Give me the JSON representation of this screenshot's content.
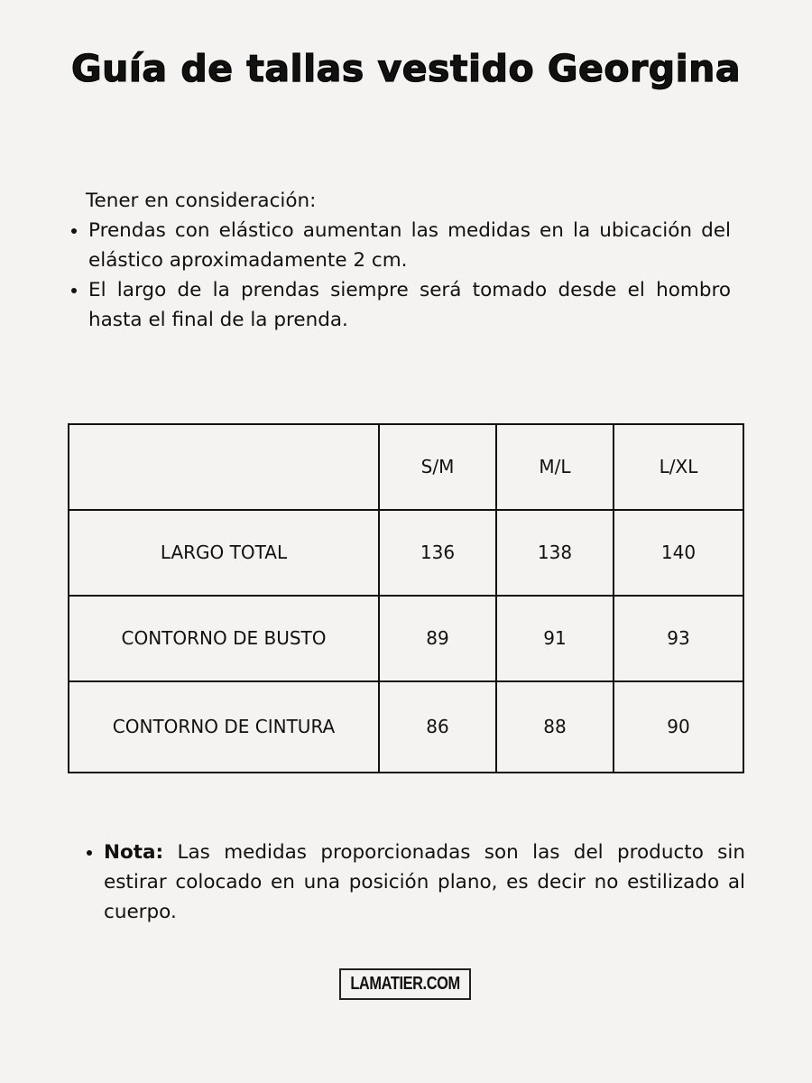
{
  "title": "Guía de tallas vestido Georgina",
  "considerations": {
    "heading": "Tener en consideración:",
    "items": [
      "Prendas con elástico aumentan las medidas en la ubicación del elástico aproximadamente 2 cm.",
      "El largo de la prendas siempre será tomado desde el hombro hasta el final de la prenda."
    ]
  },
  "table": {
    "headers": [
      "",
      "S/M",
      "M/L",
      "L/XL"
    ],
    "rows": [
      {
        "label": "LARGO TOTAL",
        "values": [
          "136",
          "138",
          "140"
        ]
      },
      {
        "label": "CONTORNO DE BUSTO",
        "values": [
          "89",
          "91",
          "93"
        ]
      },
      {
        "label": "CONTORNO DE CINTURA",
        "values": [
          "86",
          "88",
          "90"
        ]
      }
    ]
  },
  "note": {
    "label": "Nota:",
    "text": " Las medidas proporcionadas son las del producto sin estirar colocado en una posición plano, es decir no estilizado al cuerpo."
  },
  "logo": "LAMATIER.COM"
}
